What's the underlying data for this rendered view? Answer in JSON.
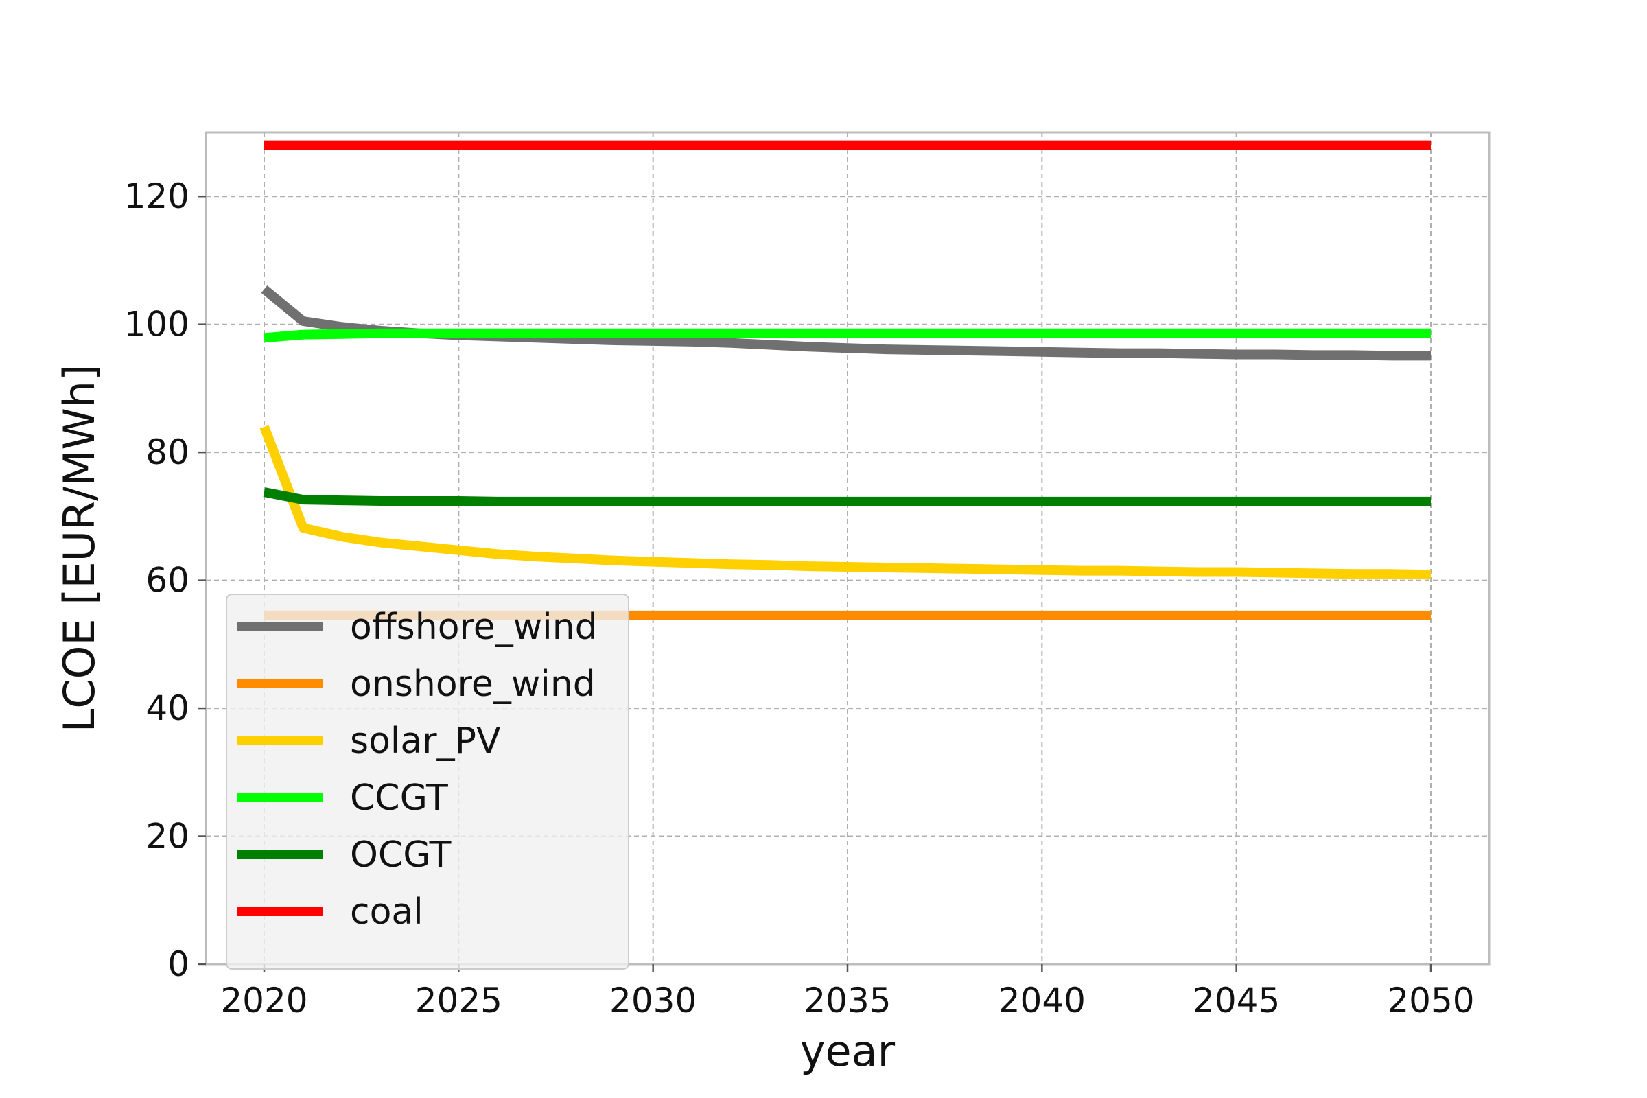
{
  "chart_data": {
    "type": "line",
    "xlabel": "year",
    "ylabel": "LCOE [EUR/MWh]",
    "xlim": [
      2018.5,
      2051.5
    ],
    "ylim": [
      0,
      130
    ],
    "xticks": [
      2020,
      2025,
      2030,
      2035,
      2040,
      2045,
      2050
    ],
    "yticks": [
      0,
      20,
      40,
      60,
      80,
      100,
      120
    ],
    "grid": true,
    "legend_position": "lower-left",
    "x": [
      2020,
      2021,
      2022,
      2023,
      2024,
      2025,
      2026,
      2027,
      2028,
      2029,
      2030,
      2031,
      2032,
      2033,
      2034,
      2035,
      2036,
      2037,
      2038,
      2039,
      2040,
      2041,
      2042,
      2043,
      2044,
      2045,
      2046,
      2047,
      2048,
      2049,
      2050
    ],
    "series": [
      {
        "name": "offshore_wind",
        "color": "#707070",
        "values": [
          105.5,
          100.5,
          99.6,
          99.0,
          98.6,
          98.3,
          98.1,
          97.9,
          97.7,
          97.5,
          97.4,
          97.3,
          97.1,
          96.8,
          96.5,
          96.3,
          96.1,
          96.0,
          95.9,
          95.8,
          95.7,
          95.6,
          95.5,
          95.5,
          95.4,
          95.3,
          95.3,
          95.2,
          95.2,
          95.1,
          95.1
        ]
      },
      {
        "name": "onshore_wind",
        "color": "#ff8c00",
        "values": [
          54.5,
          54.5,
          54.5,
          54.5,
          54.5,
          54.5,
          54.5,
          54.5,
          54.5,
          54.5,
          54.5,
          54.5,
          54.5,
          54.5,
          54.5,
          54.5,
          54.5,
          54.5,
          54.5,
          54.5,
          54.5,
          54.5,
          54.5,
          54.5,
          54.5,
          54.5,
          54.5,
          54.5,
          54.5,
          54.5,
          54.5
        ]
      },
      {
        "name": "solar_PV",
        "color": "#ffd000",
        "values": [
          84.0,
          68.2,
          66.8,
          65.9,
          65.3,
          64.7,
          64.1,
          63.7,
          63.4,
          63.1,
          62.9,
          62.7,
          62.5,
          62.4,
          62.2,
          62.1,
          62.0,
          61.9,
          61.8,
          61.7,
          61.6,
          61.5,
          61.5,
          61.4,
          61.3,
          61.3,
          61.2,
          61.1,
          61.0,
          61.0,
          60.9
        ]
      },
      {
        "name": "CCGT",
        "color": "#00ff00",
        "values": [
          97.9,
          98.4,
          98.5,
          98.6,
          98.6,
          98.6,
          98.6,
          98.6,
          98.6,
          98.6,
          98.6,
          98.6,
          98.6,
          98.6,
          98.6,
          98.6,
          98.6,
          98.6,
          98.6,
          98.6,
          98.6,
          98.6,
          98.6,
          98.6,
          98.6,
          98.6,
          98.6,
          98.6,
          98.6,
          98.6,
          98.6
        ]
      },
      {
        "name": "OCGT",
        "color": "#007f00",
        "values": [
          73.8,
          72.6,
          72.5,
          72.4,
          72.4,
          72.4,
          72.3,
          72.3,
          72.3,
          72.3,
          72.3,
          72.3,
          72.3,
          72.3,
          72.3,
          72.3,
          72.3,
          72.3,
          72.3,
          72.3,
          72.3,
          72.3,
          72.3,
          72.3,
          72.3,
          72.3,
          72.3,
          72.3,
          72.3,
          72.3,
          72.3
        ]
      },
      {
        "name": "coal",
        "color": "#ff0000",
        "values": [
          128.0,
          128.0,
          128.0,
          128.0,
          128.0,
          128.0,
          128.0,
          128.0,
          128.0,
          128.0,
          128.0,
          128.0,
          128.0,
          128.0,
          128.0,
          128.0,
          128.0,
          128.0,
          128.0,
          128.0,
          128.0,
          128.0,
          128.0,
          128.0,
          128.0,
          128.0,
          128.0,
          128.0,
          128.0,
          128.0,
          128.0
        ]
      }
    ]
  }
}
